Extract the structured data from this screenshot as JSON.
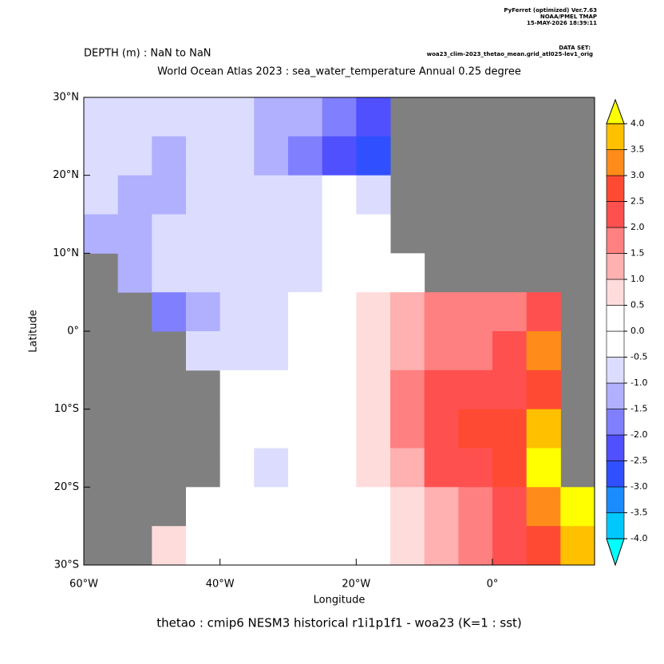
{
  "header": {
    "software": "PyFerret (optimized) Ver.7.63",
    "lab": "NOAA/PMEL TMAP",
    "date": "15-MAY-2026 18:39:11",
    "dataset_label": "DATA SET:",
    "dataset": "woa23_clim-2023_thetao_mean.grid_atl025-lev1_orig"
  },
  "chart_data": {
    "type": "heatmap",
    "subtitle": "DEPTH (m) : NaN to NaN",
    "title": "World Ocean Atlas 2023 : sea_water_temperature Annual  0.25 degree",
    "x_label": "Longitude",
    "y_label": "Latitude",
    "caption": "thetao : cmip6 NESM3 historical r1i1p1f1 - woa23  (K=1 : sst)",
    "land_color": "#808080",
    "xlim": [
      -60,
      15
    ],
    "ylim": [
      -30,
      30
    ],
    "xticks": [
      {
        "value": -60,
        "label": "60°W"
      },
      {
        "value": -40,
        "label": "40°W"
      },
      {
        "value": -20,
        "label": "20°W"
      },
      {
        "value": 0,
        "label": "0°"
      }
    ],
    "yticks": [
      {
        "value": -30,
        "label": "30°S"
      },
      {
        "value": -20,
        "label": "20°S"
      },
      {
        "value": -10,
        "label": "10°S"
      },
      {
        "value": 0,
        "label": "0°"
      },
      {
        "value": 10,
        "label": "10°N"
      },
      {
        "value": 20,
        "label": "20°N"
      },
      {
        "value": 30,
        "label": "30°N"
      }
    ],
    "x": [
      -57.5,
      -52.5,
      -47.5,
      -42.5,
      -37.5,
      -32.5,
      -27.5,
      -22.5,
      -17.5,
      -12.5,
      -7.5,
      -2.5,
      2.5,
      7.5,
      12.5
    ],
    "y": [
      27.5,
      22.5,
      17.5,
      12.5,
      7.5,
      2.5,
      -2.5,
      -7.5,
      -12.5,
      -17.5,
      -22.5,
      -27.5
    ],
    "z": [
      [
        -0.6,
        -0.8,
        -0.8,
        -0.8,
        -1.0,
        -1.2,
        -1.5,
        -1.6,
        -2.3,
        null,
        null,
        null,
        null,
        null,
        null
      ],
      [
        -0.6,
        -0.8,
        -1.2,
        -1.0,
        -1.0,
        -1.3,
        -1.6,
        -2.2,
        -2.6,
        null,
        null,
        null,
        null,
        null,
        null
      ],
      [
        -1.0,
        -1.2,
        -1.3,
        -1.0,
        -0.8,
        -0.8,
        -1.0,
        -0.4,
        -0.6,
        null,
        null,
        null,
        null,
        null,
        null
      ],
      [
        -1.2,
        -1.3,
        -0.8,
        -0.7,
        -0.6,
        -0.7,
        -0.7,
        -0.3,
        -0.2,
        null,
        null,
        null,
        null,
        null,
        null
      ],
      [
        null,
        -1.2,
        -0.8,
        -0.8,
        -0.7,
        -0.6,
        -0.7,
        -0.4,
        -0.2,
        0.3,
        null,
        null,
        null,
        null,
        null
      ],
      [
        null,
        null,
        -1.6,
        -1.3,
        -1.0,
        -0.8,
        -0.4,
        0.3,
        0.8,
        1.2,
        1.5,
        1.6,
        1.7,
        2.0,
        null
      ],
      [
        null,
        null,
        null,
        -1.0,
        -0.7,
        -0.6,
        -0.3,
        0.2,
        0.7,
        1.2,
        1.8,
        1.9,
        2.1,
        3.0,
        null
      ],
      [
        null,
        null,
        null,
        null,
        -0.3,
        -0.5,
        -0.2,
        0.1,
        0.7,
        1.5,
        2.1,
        2.2,
        2.4,
        2.9,
        null
      ],
      [
        null,
        null,
        null,
        null,
        -0.4,
        -0.5,
        -0.2,
        0.1,
        0.8,
        1.8,
        2.3,
        2.5,
        2.8,
        3.5,
        null
      ],
      [
        null,
        null,
        null,
        null,
        -0.3,
        -0.6,
        -0.3,
        0.1,
        0.5,
        1.2,
        2.0,
        2.4,
        2.9,
        4.2,
        null
      ],
      [
        null,
        null,
        null,
        -0.5,
        -0.4,
        -0.4,
        -0.3,
        0,
        0.3,
        0.8,
        1.3,
        1.8,
        2.3,
        3.0,
        4.5
      ],
      [
        null,
        null,
        0.6,
        -0.3,
        -0.5,
        -0.4,
        -0.2,
        -0.1,
        0.2,
        0.6,
        1.0,
        1.5,
        2.0,
        2.5,
        3.8
      ]
    ],
    "levels": [
      {
        "value": -4,
        "label": "-4.0"
      },
      {
        "value": -3.5,
        "label": "-3.5"
      },
      {
        "value": -3,
        "label": "-3.0"
      },
      {
        "value": -2.5,
        "label": "-2.5"
      },
      {
        "value": -2,
        "label": "-2.0"
      },
      {
        "value": -1.5,
        "label": "-1.5"
      },
      {
        "value": -1,
        "label": "-1.0"
      },
      {
        "value": -0.5,
        "label": "-0.5"
      },
      {
        "value": 0,
        "label": "0.0"
      },
      {
        "value": 0.5,
        "label": "0.5"
      },
      {
        "value": 1,
        "label": "1.0"
      },
      {
        "value": 1.5,
        "label": "1.5"
      },
      {
        "value": 2,
        "label": "2.0"
      },
      {
        "value": 2.5,
        "label": "2.5"
      },
      {
        "value": 3,
        "label": "3.0"
      },
      {
        "value": 3.5,
        "label": "3.5"
      },
      {
        "value": 4,
        "label": "4.0"
      }
    ],
    "colors": [
      "#00ffff",
      "#00c8ff",
      "#1a8cff",
      "#3050ff",
      "#5050ff",
      "#8080ff",
      "#b0b0ff",
      "#dcdcff",
      "#ffffff",
      "#ffffff",
      "#ffdcdc",
      "#ffb0b0",
      "#ff8080",
      "#ff5050",
      "#ff4a33",
      "#ff8c1a",
      "#ffc000",
      "#ffff00"
    ]
  }
}
